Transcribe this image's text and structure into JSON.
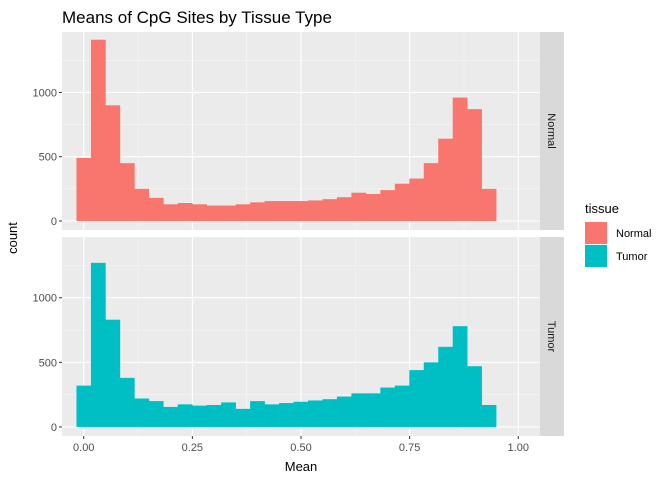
{
  "chart_data": {
    "type": "bar",
    "title": "Means of CpG Sites by Tissue Type",
    "xlabel": "Mean",
    "ylabel": "count",
    "xlim": [
      -0.05,
      1.05
    ],
    "ylim": [
      -70,
      1470
    ],
    "x_ticks": [
      0.0,
      0.25,
      0.5,
      0.75,
      1.0
    ],
    "x_tick_labels": [
      "0.00",
      "0.25",
      "0.50",
      "0.75",
      "1.00"
    ],
    "y_ticks": [
      0,
      500,
      1000
    ],
    "y_tick_labels": [
      "0",
      "500",
      "1000"
    ],
    "bin_width": 0.0333,
    "bin_start": -0.0167,
    "grid": true,
    "legend": {
      "title": "tissue",
      "position": "right",
      "entries": [
        {
          "label": "Normal",
          "color": "#F8766D"
        },
        {
          "label": "Tumor",
          "color": "#00BFC4"
        }
      ]
    },
    "series": [
      {
        "name": "Normal",
        "panel": "Normal",
        "color": "#F8766D",
        "values": [
          490,
          1410,
          900,
          450,
          250,
          180,
          130,
          140,
          130,
          120,
          120,
          130,
          145,
          155,
          155,
          155,
          160,
          170,
          185,
          220,
          210,
          240,
          290,
          330,
          450,
          640,
          960,
          870,
          250
        ]
      },
      {
        "name": "Tumor",
        "panel": "Tumor",
        "color": "#00BFC4",
        "values": [
          320,
          1270,
          830,
          380,
          220,
          200,
          155,
          175,
          165,
          170,
          190,
          140,
          200,
          175,
          185,
          195,
          205,
          215,
          235,
          260,
          260,
          305,
          320,
          440,
          500,
          620,
          780,
          470,
          170
        ]
      }
    ]
  }
}
